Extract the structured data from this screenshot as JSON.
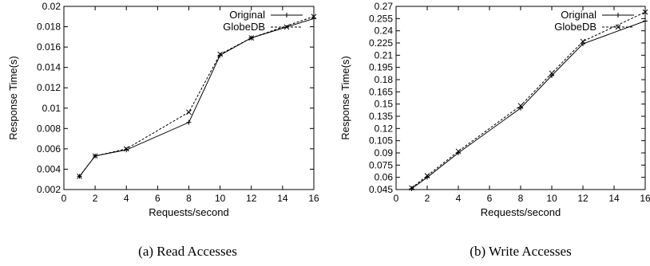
{
  "chart_data": [
    {
      "type": "line",
      "caption": "(a) Read Accesses",
      "xlabel": "Requests/second",
      "ylabel": "Response Time(s)",
      "xlim": [
        0,
        16
      ],
      "ylim": [
        0.002,
        0.02
      ],
      "x_ticks": [
        0,
        2,
        4,
        6,
        8,
        10,
        12,
        14,
        16
      ],
      "x_tick_labels": [
        "0",
        "2",
        "4",
        "6",
        "8",
        "10",
        "12",
        "14",
        "16"
      ],
      "y_ticks": [
        0.002,
        0.004,
        0.006,
        0.008,
        0.01,
        0.012,
        0.014,
        0.016,
        0.018,
        0.02
      ],
      "y_tick_labels": [
        "0.002",
        "0.004",
        "0.006",
        "0.008",
        "0.01",
        "0.012",
        "0.014",
        "0.016",
        "0.018",
        "0.02"
      ],
      "legend_position": "top-right",
      "grid": false,
      "series": [
        {
          "name": "Original",
          "style": "solid",
          "marker": "plus",
          "x": [
            1,
            2,
            4,
            8,
            10,
            12,
            16
          ],
          "y": [
            0.0033,
            0.0053,
            0.0059,
            0.0086,
            0.0152,
            0.0169,
            0.0188
          ]
        },
        {
          "name": "GlobeDB",
          "style": "dashed",
          "marker": "cross",
          "x": [
            1,
            2,
            4,
            8,
            10,
            12,
            16
          ],
          "y": [
            0.0033,
            0.0053,
            0.006,
            0.0096,
            0.0153,
            0.0169,
            0.019
          ]
        }
      ]
    },
    {
      "type": "line",
      "caption": "(b) Write Accesses",
      "xlabel": "Requests/second",
      "ylabel": "Response Time(s)",
      "xlim": [
        0,
        16
      ],
      "ylim": [
        0.045,
        0.27
      ],
      "x_ticks": [
        0,
        2,
        4,
        6,
        8,
        10,
        12,
        14,
        16
      ],
      "x_tick_labels": [
        "0",
        "2",
        "4",
        "6",
        "8",
        "10",
        "12",
        "14",
        "16"
      ],
      "y_ticks": [
        0.045,
        0.06,
        0.075,
        0.09,
        0.105,
        0.12,
        0.135,
        0.15,
        0.165,
        0.18,
        0.195,
        0.21,
        0.225,
        0.24,
        0.255,
        0.27
      ],
      "y_tick_labels": [
        "0.045",
        "0.06",
        "0.075",
        "0.09",
        "0.105",
        "0.12",
        "0.135",
        "0.15",
        "0.165",
        "0.18",
        "0.195",
        "0.21",
        "0.225",
        "0.24",
        "0.255",
        "0.27"
      ],
      "legend_position": "top-right",
      "grid": false,
      "series": [
        {
          "name": "Original",
          "style": "solid",
          "marker": "plus",
          "x": [
            1,
            2,
            4,
            8,
            10,
            12,
            16
          ],
          "y": [
            0.046,
            0.06,
            0.09,
            0.145,
            0.185,
            0.224,
            0.252
          ]
        },
        {
          "name": "GlobeDB",
          "style": "dashed",
          "marker": "cross",
          "x": [
            1,
            2,
            4,
            8,
            10,
            12,
            16
          ],
          "y": [
            0.047,
            0.062,
            0.092,
            0.148,
            0.188,
            0.227,
            0.263
          ]
        }
      ]
    }
  ]
}
